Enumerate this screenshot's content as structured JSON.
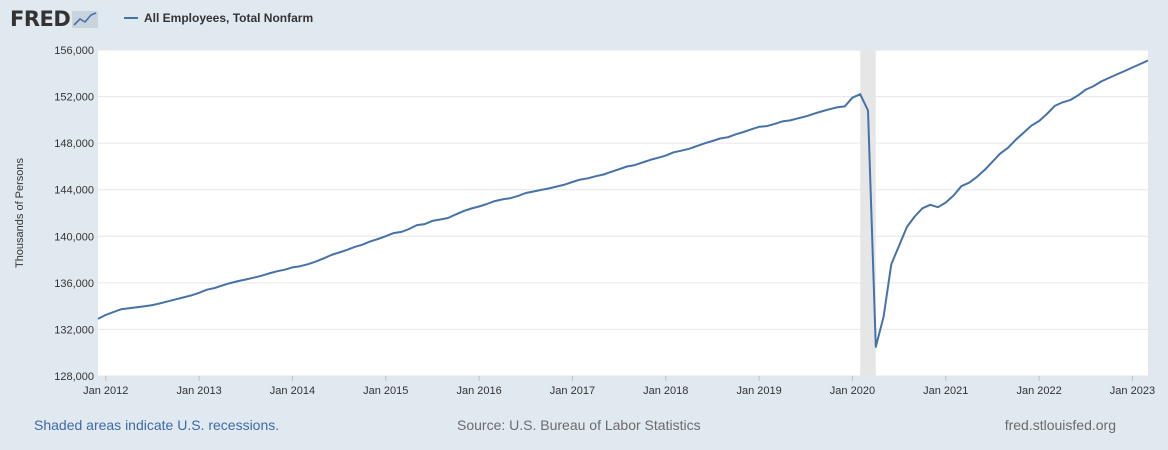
{
  "header": {
    "logo_text": "FRED",
    "legend_label": "All Employees, Total Nonfarm"
  },
  "footer": {
    "recession_note": "Shaded areas indicate U.S. recessions.",
    "source": "Source: U.S. Bureau of Labor Statistics",
    "site": "fred.stlouisfed.org"
  },
  "colors": {
    "line": "#4572a7",
    "recession": "#e6e6e6",
    "page_bg": "#e1e9f0",
    "plot_bg": "#ffffff",
    "grid": "#e6e6e6"
  },
  "chart_data": {
    "type": "line",
    "ylabel": "Thousands of Persons",
    "xlabel": "",
    "ylim": [
      128000,
      156000
    ],
    "y_ticks": [
      128000,
      132000,
      136000,
      140000,
      144000,
      148000,
      152000,
      156000
    ],
    "y_tick_labels": [
      "128,000",
      "132,000",
      "136,000",
      "140,000",
      "144,000",
      "148,000",
      "152,000",
      "156,000"
    ],
    "x_range": [
      "2011-12",
      "2023-03"
    ],
    "x_ticks": [
      "2012-01",
      "2013-01",
      "2014-01",
      "2015-01",
      "2016-01",
      "2017-01",
      "2018-01",
      "2019-01",
      "2020-01",
      "2021-01",
      "2022-01",
      "2023-01"
    ],
    "x_tick_labels": [
      "Jan 2012",
      "Jan 2013",
      "Jan 2014",
      "Jan 2015",
      "Jan 2016",
      "Jan 2017",
      "Jan 2018",
      "Jan 2019",
      "Jan 2020",
      "Jan 2021",
      "Jan 2022",
      "Jan 2023"
    ],
    "grid": true,
    "legend": "top-left",
    "recessions": [
      [
        "2020-02",
        "2020-04"
      ]
    ],
    "series": [
      {
        "name": "All Employees, Total Nonfarm",
        "x": [
          "2011-12",
          "2012-01",
          "2012-02",
          "2012-03",
          "2012-04",
          "2012-05",
          "2012-06",
          "2012-07",
          "2012-08",
          "2012-09",
          "2012-10",
          "2012-11",
          "2012-12",
          "2013-01",
          "2013-02",
          "2013-03",
          "2013-04",
          "2013-05",
          "2013-06",
          "2013-07",
          "2013-08",
          "2013-09",
          "2013-10",
          "2013-11",
          "2013-12",
          "2014-01",
          "2014-02",
          "2014-03",
          "2014-04",
          "2014-05",
          "2014-06",
          "2014-07",
          "2014-08",
          "2014-09",
          "2014-10",
          "2014-11",
          "2014-12",
          "2015-01",
          "2015-02",
          "2015-03",
          "2015-04",
          "2015-05",
          "2015-06",
          "2015-07",
          "2015-08",
          "2015-09",
          "2015-10",
          "2015-11",
          "2015-12",
          "2016-01",
          "2016-02",
          "2016-03",
          "2016-04",
          "2016-05",
          "2016-06",
          "2016-07",
          "2016-08",
          "2016-09",
          "2016-10",
          "2016-11",
          "2016-12",
          "2017-01",
          "2017-02",
          "2017-03",
          "2017-04",
          "2017-05",
          "2017-06",
          "2017-07",
          "2017-08",
          "2017-09",
          "2017-10",
          "2017-11",
          "2017-12",
          "2018-01",
          "2018-02",
          "2018-03",
          "2018-04",
          "2018-05",
          "2018-06",
          "2018-07",
          "2018-08",
          "2018-09",
          "2018-10",
          "2018-11",
          "2018-12",
          "2019-01",
          "2019-02",
          "2019-03",
          "2019-04",
          "2019-05",
          "2019-06",
          "2019-07",
          "2019-08",
          "2019-09",
          "2019-10",
          "2019-11",
          "2019-12",
          "2020-01",
          "2020-02",
          "2020-03",
          "2020-04",
          "2020-05",
          "2020-06",
          "2020-07",
          "2020-08",
          "2020-09",
          "2020-10",
          "2020-11",
          "2020-12",
          "2021-01",
          "2021-02",
          "2021-03",
          "2021-04",
          "2021-05",
          "2021-06",
          "2021-07",
          "2021-08",
          "2021-09",
          "2021-10",
          "2021-11",
          "2021-12",
          "2022-01",
          "2022-02",
          "2022-03",
          "2022-04",
          "2022-05",
          "2022-06",
          "2022-07",
          "2022-08",
          "2022-09",
          "2022-10",
          "2022-11",
          "2022-12",
          "2023-01",
          "2023-02",
          "2023-03"
        ],
        "values": [
          132900,
          133250,
          133500,
          133740,
          133820,
          133910,
          133990,
          134090,
          134240,
          134420,
          134590,
          134750,
          134920,
          135150,
          135410,
          135560,
          135780,
          135980,
          136150,
          136290,
          136440,
          136610,
          136810,
          136990,
          137130,
          137330,
          137430,
          137600,
          137830,
          138100,
          138390,
          138610,
          138830,
          139090,
          139280,
          139560,
          139770,
          140010,
          140270,
          140380,
          140630,
          140960,
          141050,
          141320,
          141440,
          141570,
          141880,
          142160,
          142390,
          142560,
          142770,
          143020,
          143170,
          143270,
          143470,
          143720,
          143850,
          143980,
          144110,
          144280,
          144440,
          144660,
          144870,
          144980,
          145160,
          145310,
          145540,
          145760,
          145990,
          146110,
          146340,
          146560,
          146740,
          146930,
          147210,
          147350,
          147510,
          147750,
          147990,
          148180,
          148400,
          148510,
          148760,
          148960,
          149190,
          149400,
          149460,
          149650,
          149870,
          149950,
          150130,
          150300,
          150520,
          150720,
          150910,
          151070,
          151160,
          151900,
          152200,
          150800,
          130500,
          133100,
          137600,
          139200,
          140800,
          141700,
          142400,
          142700,
          142500,
          142900,
          143500,
          144300,
          144600,
          145100,
          145700,
          146400,
          147100,
          147600,
          148300,
          148900,
          149500,
          149900,
          150500,
          151200,
          151500,
          151700,
          152100,
          152600,
          152900,
          153300,
          153600,
          153900,
          154200,
          154500,
          154800,
          155100
        ]
      }
    ]
  }
}
